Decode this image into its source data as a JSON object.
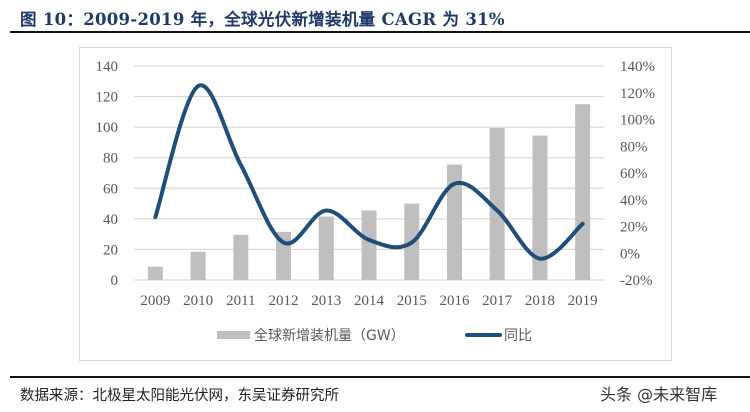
{
  "header": {
    "title": "图 10：2009-2019 年，全球光伏新增装机量 CAGR 为 31%"
  },
  "legend": {
    "bar_label": "全球新增装机量（GW）",
    "line_label": "同比"
  },
  "footer": {
    "source": "数据来源：北极星太阳能光伏网，东吴证券研究所",
    "watermark": "头条 @未来智库"
  },
  "colors": {
    "title": "#1F3A68",
    "bar": "#BFBFBF",
    "line": "#1F4E79",
    "axis_text": "#595959",
    "grid": "#D9D9D9"
  },
  "chart_data": {
    "type": "bar",
    "title": "2009-2019 年，全球光伏新增装机量 CAGR 为 31%",
    "categories": [
      "2009",
      "2010",
      "2011",
      "2012",
      "2013",
      "2014",
      "2015",
      "2016",
      "2017",
      "2018",
      "2019"
    ],
    "series": [
      {
        "name": "全球新增装机量（GW）",
        "type": "bar",
        "axis": "left",
        "values": [
          8.7,
          18.5,
          29.5,
          31.5,
          41.5,
          45.5,
          50,
          75.5,
          99.5,
          94.5,
          115
        ]
      },
      {
        "name": "同比",
        "type": "line",
        "axis": "right",
        "smooth": true,
        "values": [
          27,
          125,
          66,
          8,
          32,
          10,
          8,
          52,
          32,
          -4,
          22
        ]
      }
    ],
    "xlabel": "",
    "ylabel": "",
    "y_left": {
      "min": 0,
      "max": 140,
      "step": 20,
      "ticks": [
        "0",
        "20",
        "40",
        "60",
        "80",
        "100",
        "120",
        "140"
      ]
    },
    "y_right": {
      "min": -20,
      "max": 140,
      "step": 20,
      "ticks": [
        "-20%",
        "0%",
        "20%",
        "40%",
        "60%",
        "80%",
        "100%",
        "120%",
        "140%"
      ]
    },
    "grid": true,
    "legend_position": "bottom"
  }
}
